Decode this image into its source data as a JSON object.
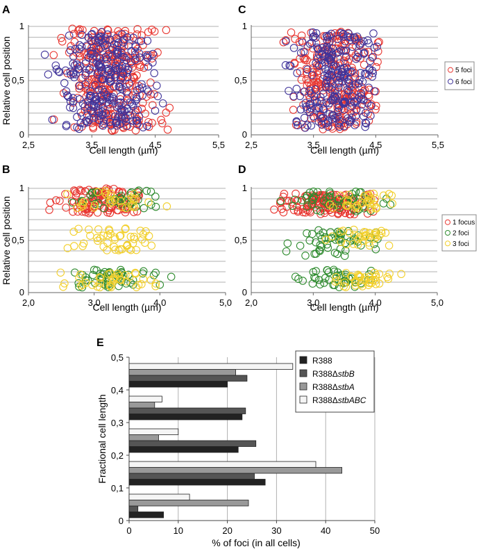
{
  "colors": {
    "red": "#e8352f",
    "blue": "#40349a",
    "green": "#2e8b2e",
    "yellow": "#f2cf2a",
    "grid": "#b0b0b0",
    "bar_R388": "#222222",
    "bar_stbB": "#555555",
    "bar_stbA": "#999999",
    "bar_stbABC": "#f5f5f5"
  },
  "chart_data": [
    {
      "id": "A",
      "type": "scatter",
      "panel_label": "A",
      "xlabel": "Cell length (µm)",
      "ylabel": "Relative cell position",
      "xlim": [
        2.5,
        5.5
      ],
      "ylim": [
        0,
        1
      ],
      "xticks": [
        "2,5",
        "3,5",
        "4,5",
        "5,5"
      ],
      "yticks": [
        "0",
        "0,5",
        "1"
      ],
      "grid": "horizontal",
      "legend": "none",
      "series": [
        {
          "name": "5 foci",
          "color": "red",
          "x_range": [
            2.6,
            5.4
          ],
          "x_peak": 3.5,
          "count": 300,
          "y_bands": [
            [
              0.02,
              0.98
            ]
          ]
        },
        {
          "name": "6 foci",
          "color": "blue",
          "x_range": [
            2.7,
            5.4
          ],
          "x_peak": 3.3,
          "count": 280,
          "y_bands": [
            [
              0.05,
              0.95
            ]
          ]
        }
      ]
    },
    {
      "id": "C",
      "type": "scatter",
      "panel_label": "C",
      "xlabel": "Cell length (µm)",
      "ylabel": "",
      "xlim": [
        2.5,
        5.5
      ],
      "ylim": [
        0,
        1
      ],
      "xticks": [
        "2,5",
        "3,5",
        "4,5",
        "5,5"
      ],
      "yticks": [
        "0",
        "0,5",
        "1"
      ],
      "grid": "horizontal",
      "legend": "right",
      "legend_entries": [
        {
          "label": "5 foci",
          "color": "red"
        },
        {
          "label": "6 foci",
          "color": "blue"
        }
      ],
      "series": [
        {
          "name": "5 foci",
          "color": "red",
          "x_range": [
            2.8,
            5.0
          ],
          "x_peak": 3.7,
          "count": 260,
          "y_bands": [
            [
              0.05,
              0.95
            ]
          ]
        },
        {
          "name": "6 foci",
          "color": "blue",
          "x_range": [
            2.8,
            5.0
          ],
          "x_peak": 3.8,
          "count": 250,
          "y_bands": [
            [
              0.05,
              0.95
            ]
          ]
        }
      ]
    },
    {
      "id": "B",
      "type": "scatter",
      "panel_label": "B",
      "xlabel": "Cell length (µm)",
      "ylabel": "Relative cell position",
      "xlim": [
        2.0,
        5.5
      ],
      "ylim": [
        0,
        1
      ],
      "xticks": [
        "2,0",
        "3,0",
        "4,0",
        "5,0"
      ],
      "yticks": [
        "0",
        "0,5",
        "1"
      ],
      "grid": "horizontal",
      "legend": "none",
      "series": [
        {
          "name": "1 focus",
          "color": "red",
          "x_range": [
            2.1,
            4.8
          ],
          "x_peak": 3.0,
          "count": 110,
          "y_bands": [
            [
              0.75,
              1.0
            ]
          ]
        },
        {
          "name": "2 foci",
          "color": "green",
          "x_range": [
            2.2,
            5.2
          ],
          "x_peak": 3.3,
          "count": 90,
          "y_bands": [
            [
              0.05,
              0.22
            ],
            [
              0.8,
              0.98
            ]
          ]
        },
        {
          "name": "3 foci",
          "color": "yellow",
          "x_range": [
            2.1,
            5.2
          ],
          "x_peak": 3.3,
          "count": 120,
          "y_bands": [
            [
              0.05,
              0.2
            ],
            [
              0.4,
              0.62
            ],
            [
              0.8,
              0.98
            ]
          ]
        }
      ]
    },
    {
      "id": "D",
      "type": "scatter",
      "panel_label": "D",
      "xlabel": "Cell length (µm)",
      "ylabel": "",
      "xlim": [
        2.0,
        5.5
      ],
      "ylim": [
        0,
        1
      ],
      "xticks": [
        "2,0",
        "3,0",
        "4,0",
        "5,0"
      ],
      "yticks": [
        "0",
        "0,5",
        "1"
      ],
      "grid": "horizontal",
      "legend": "right",
      "legend_entries": [
        {
          "label": "1 focus",
          "color": "red"
        },
        {
          "label": "2 foci",
          "color": "green"
        },
        {
          "label": "3 foci",
          "color": "yellow"
        }
      ],
      "series": [
        {
          "name": "1 focus",
          "color": "red",
          "x_range": [
            2.0,
            5.0
          ],
          "x_peak": 3.3,
          "count": 140,
          "y_bands": [
            [
              0.75,
              0.95
            ]
          ]
        },
        {
          "name": "2 foci",
          "color": "green",
          "x_range": [
            2.2,
            5.3
          ],
          "x_peak": 3.3,
          "count": 150,
          "y_bands": [
            [
              0.05,
              0.22
            ],
            [
              0.35,
              0.6
            ],
            [
              0.78,
              0.98
            ]
          ]
        },
        {
          "name": "3 foci",
          "color": "yellow",
          "x_range": [
            3.0,
            5.3
          ],
          "x_peak": 4.0,
          "count": 110,
          "y_bands": [
            [
              0.05,
              0.2
            ],
            [
              0.45,
              0.62
            ],
            [
              0.8,
              0.95
            ]
          ]
        }
      ]
    },
    {
      "id": "E",
      "type": "bar",
      "orientation": "horizontal",
      "panel_label": "E",
      "xlabel": "% of foci (in all cells)",
      "ylabel": "Fractional cell length",
      "xlim": [
        0,
        50
      ],
      "ylim": [
        0,
        0.5
      ],
      "xticks": [
        "0",
        "10",
        "20",
        "30",
        "40",
        "50"
      ],
      "yticks": [
        "0",
        "0,1",
        "0,2",
        "0,3",
        "0,4",
        "0,5"
      ],
      "grid": "vertical",
      "legend": "right",
      "categories": [
        "0,0–0,1",
        "0,1–0,2",
        "0,2–0,3",
        "0,3–0,4",
        "0,4–0,5"
      ],
      "series": [
        {
          "name_main": "R388",
          "name_italic": "",
          "color": "bar_R388",
          "values": [
            7.0,
            27.7,
            22.2,
            23.0,
            20.0
          ]
        },
        {
          "name_main": "R388Δ",
          "name_italic": "stbB",
          "color": "bar_stbB",
          "values": [
            1.8,
            25.5,
            25.8,
            23.7,
            24.0
          ]
        },
        {
          "name_main": "R388Δ",
          "name_italic": "stbA",
          "color": "bar_stbA",
          "values": [
            24.3,
            43.3,
            6.0,
            5.2,
            21.7
          ]
        },
        {
          "name_main": "R388Δ",
          "name_italic": "stbABC",
          "color": "bar_stbABC",
          "values": [
            12.3,
            38.0,
            10.0,
            6.7,
            33.3
          ]
        }
      ]
    }
  ]
}
